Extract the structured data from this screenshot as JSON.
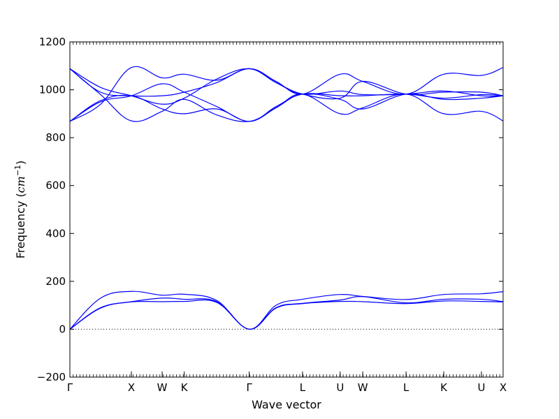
{
  "chart_data": {
    "type": "line",
    "title": "",
    "xlabel": "Wave vector",
    "ylabel_text": "Frequency (",
    "ylabel_unit_base": "cm",
    "ylabel_unit_exp": "−1",
    "ylabel_close": ")",
    "ylim": [
      -200,
      1200
    ],
    "yticks": [
      -200,
      0,
      200,
      400,
      600,
      800,
      1000,
      1200
    ],
    "xlim": [
      0,
      1
    ],
    "grid": false,
    "zero_line": "dotted",
    "series_color": "#0000ff",
    "x_ticks": [
      {
        "x": 0.0,
        "label": "Γ"
      },
      {
        "x": 0.142,
        "label": "X"
      },
      {
        "x": 0.213,
        "label": "W"
      },
      {
        "x": 0.264,
        "label": "K"
      },
      {
        "x": 0.414,
        "label": "Γ"
      },
      {
        "x": 0.537,
        "label": "L"
      },
      {
        "x": 0.624,
        "label": "U"
      },
      {
        "x": 0.676,
        "label": "W"
      },
      {
        "x": 0.776,
        "label": "L"
      },
      {
        "x": 0.863,
        "label": "K"
      },
      {
        "x": 0.95,
        "label": "U"
      },
      {
        "x": 1.0,
        "label": "X"
      }
    ],
    "series": [
      {
        "x": [
          0,
          0.071,
          0.142,
          0.213,
          0.264,
          0.339,
          0.414,
          0.476,
          0.537,
          0.624,
          0.676,
          0.776,
          0.863,
          0.95,
          1.0
        ],
        "y": [
          0,
          130,
          158,
          142,
          146,
          120,
          0,
          100,
          125,
          145,
          137,
          124,
          145,
          148,
          157
        ]
      },
      {
        "x": [
          0,
          0.071,
          0.142,
          0.213,
          0.264,
          0.339,
          0.414,
          0.476,
          0.537,
          0.624,
          0.676,
          0.776,
          0.863,
          0.95,
          1.0
        ],
        "y": [
          0,
          90,
          115,
          130,
          125,
          115,
          0,
          90,
          108,
          122,
          136,
          110,
          125,
          125,
          115
        ]
      },
      {
        "x": [
          0,
          0.071,
          0.142,
          0.213,
          0.264,
          0.339,
          0.414,
          0.476,
          0.537,
          0.624,
          0.676,
          0.776,
          0.863,
          0.95,
          1.0
        ],
        "y": [
          0,
          88,
          114,
          115,
          116,
          112,
          0,
          88,
          107,
          116,
          115,
          107,
          118,
          116,
          114
        ]
      },
      {
        "x": [
          0,
          0.071,
          0.142,
          0.213,
          0.264,
          0.339,
          0.414,
          0.476,
          0.537,
          0.624,
          0.676,
          0.776,
          0.863,
          0.95,
          1.0
        ],
        "y": [
          1088,
          1010,
          975,
          940,
          965,
          1045,
          1088,
          1030,
          982,
          995,
          980,
          982,
          995,
          975,
          975
        ]
      },
      {
        "x": [
          0,
          0.071,
          0.142,
          0.213,
          0.264,
          0.339,
          0.414,
          0.476,
          0.537,
          0.624,
          0.676,
          0.776,
          0.863,
          0.95,
          1.0
        ],
        "y": [
          1088,
          990,
          975,
          975,
          990,
          1030,
          1088,
          1035,
          982,
          1065,
          1035,
          982,
          1065,
          1060,
          1093
        ]
      },
      {
        "x": [
          0,
          0.071,
          0.142,
          0.213,
          0.264,
          0.339,
          0.414,
          0.476,
          0.537,
          0.624,
          0.676,
          0.776,
          0.863,
          0.95,
          1.0
        ],
        "y": [
          868,
          940,
          1093,
          1050,
          1065,
          1040,
          1088,
          1030,
          982,
          965,
          1035,
          982,
          990,
          990,
          975
        ]
      },
      {
        "x": [
          0,
          0.071,
          0.142,
          0.213,
          0.264,
          0.339,
          0.414,
          0.476,
          0.537,
          0.624,
          0.676,
          0.776,
          0.863,
          0.95,
          1.0
        ],
        "y": [
          868,
          950,
          975,
          1025,
          990,
          930,
          868,
          930,
          982,
          975,
          975,
          982,
          965,
          980,
          975
        ]
      },
      {
        "x": [
          0,
          0.071,
          0.142,
          0.213,
          0.264,
          0.339,
          0.414,
          0.476,
          0.537,
          0.624,
          0.676,
          0.776,
          0.863,
          0.95,
          1.0
        ],
        "y": [
          868,
          955,
          975,
          920,
          900,
          920,
          868,
          925,
          982,
          900,
          925,
          982,
          900,
          910,
          870
        ]
      },
      {
        "x": [
          0,
          0.071,
          0.142,
          0.213,
          0.264,
          0.339,
          0.414,
          0.476,
          0.537,
          0.624,
          0.676,
          0.776,
          0.863,
          0.95,
          1.0
        ],
        "y": [
          1088,
          980,
          870,
          910,
          960,
          895,
          868,
          925,
          982,
          960,
          920,
          982,
          960,
          965,
          975
        ]
      }
    ]
  }
}
